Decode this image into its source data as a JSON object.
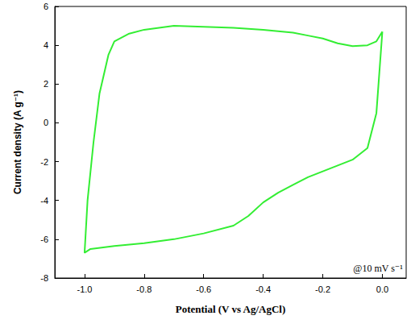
{
  "chart_data": {
    "type": "line",
    "x_label": "Potential (V vs Ag/AgCl)",
    "y_label": "Current density (A g⁻¹)",
    "annotations": [
      "@10 mV s⁻¹"
    ],
    "x": [
      0.0,
      -0.02,
      -0.05,
      -0.1,
      -0.15,
      -0.2,
      -0.25,
      -0.3,
      -0.4,
      -0.5,
      -0.6,
      -0.7,
      -0.8,
      -0.85,
      -0.9,
      -0.92,
      -0.95,
      -0.97,
      -0.99,
      -1.0,
      -0.98,
      -0.9,
      -0.8,
      -0.7,
      -0.6,
      -0.5,
      -0.45,
      -0.4,
      -0.35,
      -0.3,
      -0.25,
      -0.2,
      -0.15,
      -0.1,
      -0.05,
      -0.02,
      0.0
    ],
    "series": [
      {
        "color": "#33ee33",
        "values": [
          4.7,
          4.2,
          4.0,
          3.95,
          4.1,
          4.35,
          4.5,
          4.65,
          4.8,
          4.9,
          4.95,
          5.0,
          4.8,
          4.6,
          4.2,
          3.5,
          1.5,
          -1.0,
          -4.0,
          -6.7,
          -6.5,
          -6.35,
          -6.2,
          -6.0,
          -5.7,
          -5.3,
          -4.8,
          -4.1,
          -3.6,
          -3.2,
          -2.8,
          -2.5,
          -2.2,
          -1.9,
          -1.3,
          0.5,
          4.7
        ]
      }
    ],
    "xlim": [
      -1.1,
      0.08
    ],
    "xticks": [
      {
        "value": -1.0,
        "label": "-1.0"
      },
      {
        "value": -0.8,
        "label": "-0.8"
      },
      {
        "value": -0.6,
        "label": "-0.6"
      },
      {
        "value": -0.4,
        "label": "-0.4"
      },
      {
        "value": -0.2,
        "label": "-0.2"
      },
      {
        "value": 0.0,
        "label": "0.0"
      }
    ],
    "ylim": [
      -8,
      6
    ],
    "yticks": [
      -8,
      -6,
      -4,
      -2,
      0,
      2,
      4,
      6
    ],
    "grid": false,
    "marker": "none",
    "line_style": "solid"
  }
}
